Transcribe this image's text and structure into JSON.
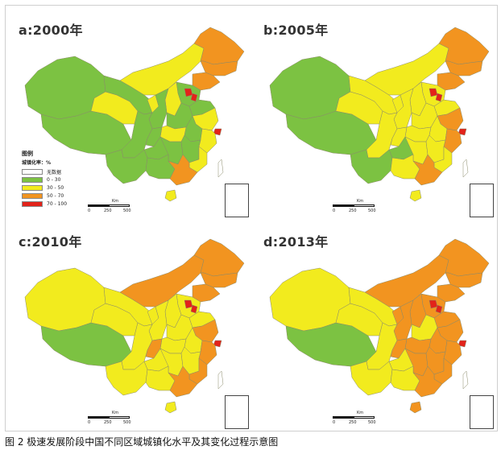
{
  "caption": "图 2  极速发展阶段中国不同区域城镇化水平及其变化过程示意图",
  "colors": {
    "no_data": "#ffffff",
    "c1": "#7cc242",
    "c2": "#f2eb1e",
    "c3": "#f29420",
    "c4": "#e2231a",
    "outline": "#8a8a6a"
  },
  "legend": {
    "title": "图例",
    "unit": "城镇化率：%",
    "items": [
      {
        "label": "无数据",
        "color": "#ffffff"
      },
      {
        "label": "0 - 30",
        "color": "#7cc242"
      },
      {
        "label": "30 - 50",
        "color": "#f2eb1e"
      },
      {
        "label": "50 - 70",
        "color": "#f29420"
      },
      {
        "label": "70 - 100",
        "color": "#e2231a"
      }
    ]
  },
  "scalebar": {
    "ticks": [
      "0",
      "250",
      "500"
    ],
    "unit": "Km"
  },
  "panels": [
    {
      "label": "a:2000年",
      "regions": {
        "xinjiang": "c1",
        "tibet": "c1",
        "qinghai": "c2",
        "neimenggu": "c2",
        "heilongjiang": "c3",
        "jilin": "c3",
        "liaoning": "c3",
        "gansu": "c1",
        "ningxia": "c2",
        "shaanxi": "c1",
        "shanxi": "c2",
        "hebei": "c1",
        "beijing": "c4",
        "tianjin": "c4",
        "shandong": "c1",
        "henan": "c1",
        "sichuan": "c1",
        "chongqing": "c1",
        "hubei": "c2",
        "anhui": "c1",
        "jiangsu": "c2",
        "shanghai": "c4",
        "zhejiang": "c2",
        "yunnan": "c1",
        "guizhou": "c1",
        "hunan": "c1",
        "jiangxi": "c1",
        "fujian": "c2",
        "guangxi": "c1",
        "guangdong": "c3",
        "hainan": "c2",
        "taiwan": "no_data"
      }
    },
    {
      "label": "b:2005年",
      "regions": {
        "xinjiang": "c1",
        "tibet": "c1",
        "qinghai": "c2",
        "neimenggu": "c2",
        "heilongjiang": "c3",
        "jilin": "c3",
        "liaoning": "c3",
        "gansu": "c2",
        "ningxia": "c2",
        "shaanxi": "c2",
        "shanxi": "c2",
        "hebei": "c2",
        "beijing": "c4",
        "tianjin": "c4",
        "shandong": "c2",
        "henan": "c2",
        "sichuan": "c2",
        "chongqing": "c2",
        "hubei": "c2",
        "anhui": "c2",
        "jiangsu": "c3",
        "shanghai": "c4",
        "zhejiang": "c3",
        "yunnan": "c1",
        "guizhou": "c1",
        "hunan": "c2",
        "jiangxi": "c2",
        "fujian": "c2",
        "guangxi": "c2",
        "guangdong": "c3",
        "hainan": "c2",
        "taiwan": "no_data"
      }
    },
    {
      "label": "c:2010年",
      "regions": {
        "xinjiang": "c2",
        "tibet": "c1",
        "qinghai": "c2",
        "neimenggu": "c3",
        "heilongjiang": "c3",
        "jilin": "c3",
        "liaoning": "c3",
        "gansu": "c2",
        "ningxia": "c2",
        "shaanxi": "c2",
        "shanxi": "c2",
        "hebei": "c2",
        "beijing": "c4",
        "tianjin": "c4",
        "shandong": "c2",
        "henan": "c2",
        "sichuan": "c2",
        "chongqing": "c3",
        "hubei": "c2",
        "anhui": "c2",
        "jiangsu": "c3",
        "shanghai": "c4",
        "zhejiang": "c3",
        "yunnan": "c2",
        "guizhou": "c2",
        "hunan": "c2",
        "jiangxi": "c2",
        "fujian": "c3",
        "guangxi": "c2",
        "guangdong": "c3",
        "hainan": "c2",
        "taiwan": "no_data"
      }
    },
    {
      "label": "d:2013年",
      "regions": {
        "xinjiang": "c2",
        "tibet": "c1",
        "qinghai": "c2",
        "neimenggu": "c3",
        "heilongjiang": "c3",
        "jilin": "c3",
        "liaoning": "c3",
        "gansu": "c2",
        "ningxia": "c3",
        "shaanxi": "c3",
        "shanxi": "c3",
        "hebei": "c3",
        "beijing": "c4",
        "tianjin": "c4",
        "shandong": "c3",
        "henan": "c2",
        "sichuan": "c2",
        "chongqing": "c3",
        "hubei": "c3",
        "anhui": "c3",
        "jiangsu": "c3",
        "shanghai": "c4",
        "zhejiang": "c3",
        "yunnan": "c2",
        "guizhou": "c2",
        "hunan": "c3",
        "jiangxi": "c3",
        "fujian": "c3",
        "guangxi": "c2",
        "guangdong": "c3",
        "hainan": "c3",
        "taiwan": "no_data"
      }
    }
  ]
}
